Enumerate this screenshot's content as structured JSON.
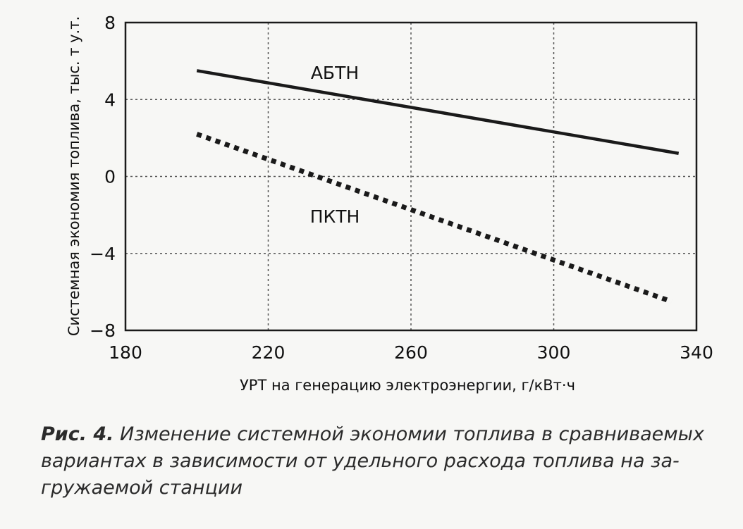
{
  "chart_data": {
    "type": "line",
    "xlabel": "УРТ на генерацию электроэнергии, г/кВт·ч",
    "ylabel": "Системная экономия топлива, тыс. т у.т.",
    "xlim": [
      180,
      340
    ],
    "ylim": [
      -8,
      8
    ],
    "x_ticks": [
      180,
      220,
      260,
      300,
      340
    ],
    "y_ticks": [
      8,
      4,
      0,
      -4,
      -8
    ],
    "y_tick_labels": [
      "8",
      "4",
      "0",
      "−4",
      "−8"
    ],
    "grid": true,
    "series": [
      {
        "name": "АБТН",
        "style": "solid",
        "x": [
          200,
          335
        ],
        "y": [
          5.5,
          1.2
        ]
      },
      {
        "name": "ПКТН",
        "style": "dotted",
        "x": [
          200,
          333
        ],
        "y": [
          2.2,
          -6.5
        ]
      }
    ]
  },
  "caption": {
    "label": "Рис. 4.",
    "text": "Изменение системной экономии топлива в сравниваемых вариантах в зависимости от удельного расхода топлива на за-гружаемой станции"
  },
  "colors": {
    "line": "#1a1a1a",
    "grid": "#555555",
    "background": "#f7f7f5"
  }
}
